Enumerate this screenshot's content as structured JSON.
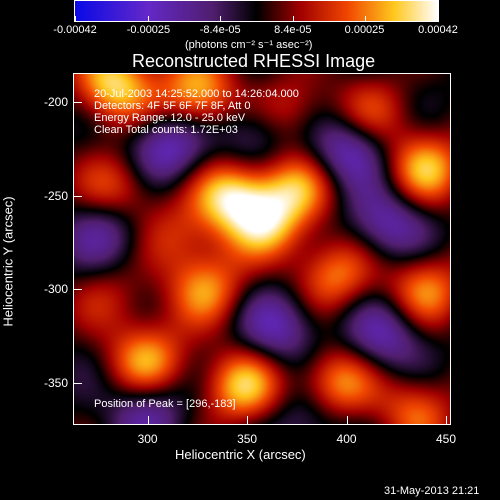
{
  "chart_data": {
    "type": "heatmap",
    "title": "Reconstructed RHESSI Image",
    "xlabel": "Heliocentric X (arcsec)",
    "ylabel": "Heliocentric Y (arcsec)",
    "xlim": [
      263,
      452
    ],
    "ylim": [
      -372,
      -185
    ],
    "x_ticks": [
      300,
      350,
      400,
      450
    ],
    "y_ticks": [
      -200,
      -250,
      -300,
      -350
    ],
    "colorbar": {
      "range": [
        -0.00042,
        0.00042
      ],
      "tick_labels": [
        "-0.00042",
        "-0.00025",
        "-8.4e-05",
        "8.4e-05",
        "0.00025",
        "0.00042"
      ],
      "tick_values": [
        -0.00042,
        -0.00025,
        -8.4e-05,
        8.4e-05,
        0.00025,
        0.00042
      ],
      "units": "(photons cm⁻² s⁻¹ asec⁻²)"
    },
    "annotations": [
      "20-Jul-2003 14:25:52.000 to 14:26:04.000",
      "Detectors: 4F 5F 6F 7F 8F, Att 0",
      "Energy Range: 12.0 - 25.0 keV",
      "Clean    Total counts: 1.72E+03"
    ],
    "peak_text": "Position of Peak = [296,-183]",
    "peak": [
      296,
      -183
    ],
    "blobs": [
      {
        "x": 283,
        "y": -190,
        "v": 1.0
      },
      {
        "x": 325,
        "y": -195,
        "v": 0.9
      },
      {
        "x": 342,
        "y": -250,
        "v": 1.0
      },
      {
        "x": 360,
        "y": -265,
        "v": 0.8
      },
      {
        "x": 285,
        "y": -245,
        "v": 0.6
      },
      {
        "x": 330,
        "y": -300,
        "v": 0.7
      },
      {
        "x": 375,
        "y": -245,
        "v": 0.7
      },
      {
        "x": 395,
        "y": -292,
        "v": 0.7
      },
      {
        "x": 300,
        "y": -338,
        "v": 0.8
      },
      {
        "x": 348,
        "y": -352,
        "v": 0.9
      },
      {
        "x": 395,
        "y": -350,
        "v": 0.8
      },
      {
        "x": 440,
        "y": -235,
        "v": 0.85
      },
      {
        "x": 440,
        "y": -300,
        "v": 0.7
      },
      {
        "x": 435,
        "y": -365,
        "v": 0.6
      },
      {
        "x": 315,
        "y": -272,
        "v": 0.45
      },
      {
        "x": 282,
        "y": -305,
        "v": 0.35
      },
      {
        "x": 370,
        "y": -205,
        "v": 0.55
      },
      {
        "x": 412,
        "y": -205,
        "v": 0.5
      },
      {
        "x": 310,
        "y": -225,
        "v": -0.7
      },
      {
        "x": 355,
        "y": -215,
        "v": -0.5
      },
      {
        "x": 400,
        "y": -225,
        "v": -0.7
      },
      {
        "x": 420,
        "y": -265,
        "v": -0.6
      },
      {
        "x": 280,
        "y": -270,
        "v": -0.5
      },
      {
        "x": 300,
        "y": -365,
        "v": -0.5
      },
      {
        "x": 365,
        "y": -320,
        "v": -0.6
      },
      {
        "x": 418,
        "y": -325,
        "v": -0.6
      },
      {
        "x": 380,
        "y": -370,
        "v": -0.4
      }
    ]
  },
  "footer": {
    "timestamp": "31-May-2013 21:21"
  }
}
